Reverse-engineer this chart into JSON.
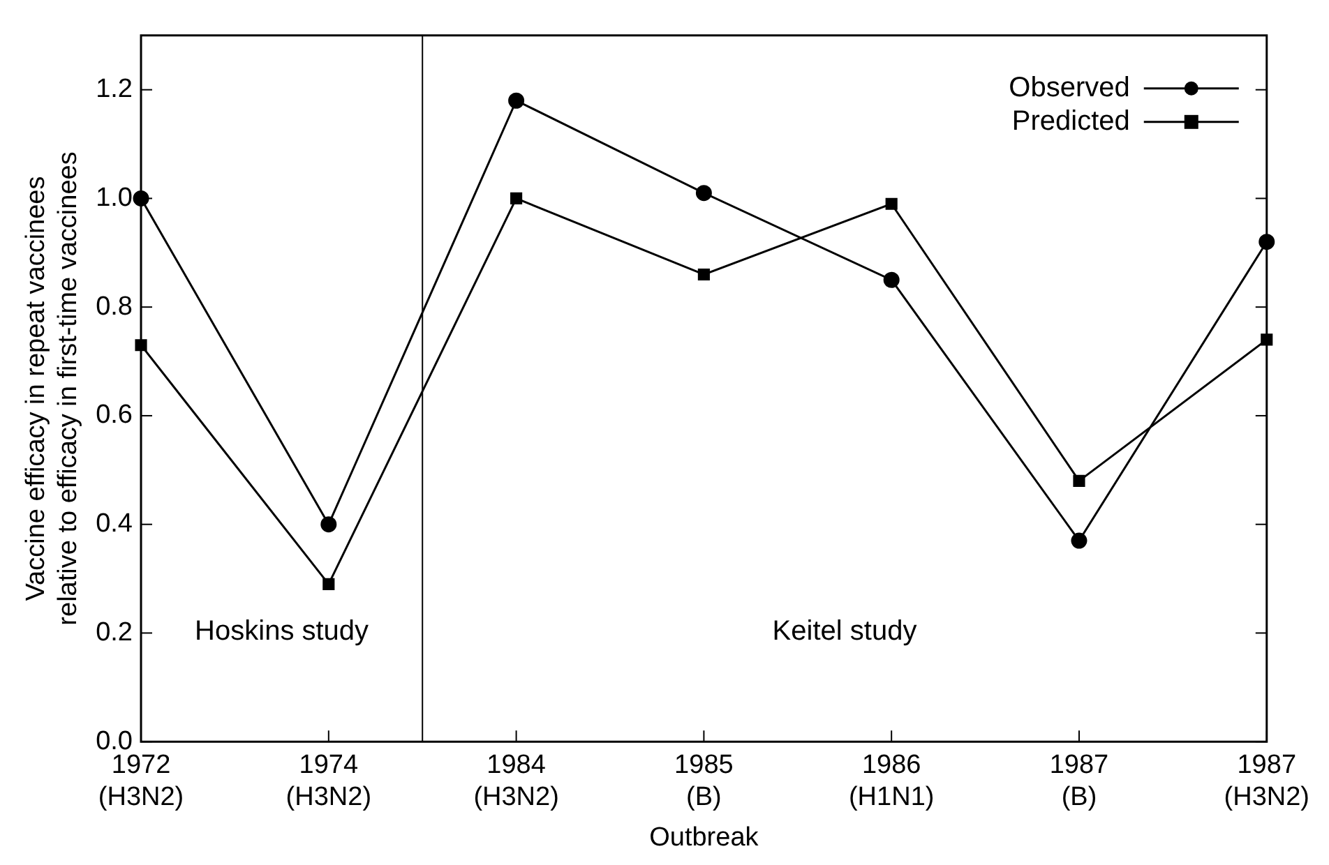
{
  "chart_data": {
    "type": "line",
    "xlabel": "Outbreak",
    "ylabel": "Vaccine efficacy in repeat vaccinees\nrelative to efficacy in first-time vaccinees",
    "categories": [
      "1972\n(H3N2)",
      "1974\n(H3N2)",
      "1984\n(H3N2)",
      "1985\n(B)",
      "1986\n(H1N1)",
      "1987\n(B)",
      "1987\n(H3N2)"
    ],
    "series": [
      {
        "name": "Observed",
        "color": "#000000",
        "marker": "circle",
        "values": [
          1.0,
          0.4,
          1.18,
          1.01,
          0.85,
          0.37,
          0.92
        ]
      },
      {
        "name": "Predicted",
        "color": "#000000",
        "marker": "square",
        "values": [
          0.73,
          0.29,
          1.0,
          0.86,
          0.99,
          0.48,
          0.74
        ]
      }
    ],
    "ylim": [
      0,
      1.3
    ],
    "yticks": [
      {
        "value": 0,
        "label": "0.0"
      },
      {
        "value": 0.2,
        "label": "0.2"
      },
      {
        "value": 0.4,
        "label": "0.4"
      },
      {
        "value": 0.6,
        "label": "0.6"
      },
      {
        "value": 0.8,
        "label": "0.8"
      },
      {
        "value": 1,
        "label": "1.0"
      },
      {
        "value": 1.2,
        "label": "1.2"
      }
    ],
    "annotations": [
      "Hoskins study",
      "Keitel study"
    ],
    "grid": false,
    "legend": "top right",
    "line_style": "solid"
  }
}
